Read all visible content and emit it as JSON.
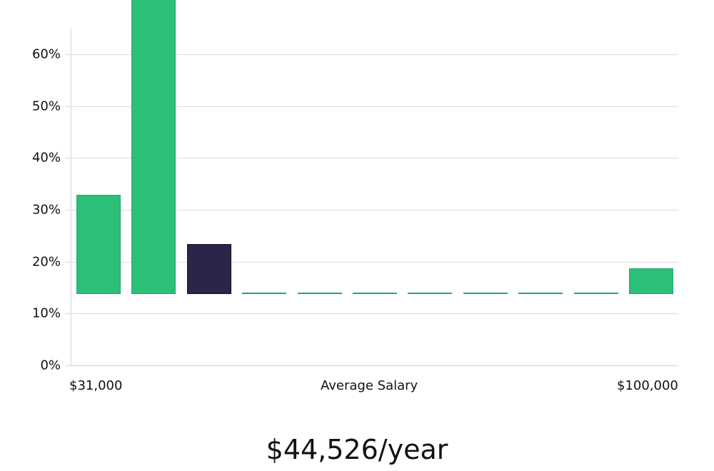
{
  "chart_data": {
    "type": "bar",
    "title": "",
    "xlabel": "Average Salary",
    "ylabel": "",
    "x_range_labels": {
      "min": "$31,000",
      "max": "$100,000"
    },
    "categories": [
      "bin1",
      "bin2",
      "bin3",
      "bin4",
      "bin5",
      "bin6",
      "bin7",
      "bin8",
      "bin9",
      "bin10",
      "bin11"
    ],
    "values": [
      19.1,
      61.9,
      9.6,
      0,
      0,
      0,
      0,
      0,
      0,
      0,
      5.0
    ],
    "highlight_index": 2,
    "yticks": [
      "0%",
      "10%",
      "20%",
      "30%",
      "40%",
      "50%",
      "60%"
    ],
    "ylim": [
      0,
      65
    ],
    "grid": true,
    "colors": {
      "bar": "#2bbf77",
      "highlight": "#29264a",
      "grid": "#dcdcdc"
    }
  },
  "labels": {
    "x_min": "$31,000",
    "x_center": "Average Salary",
    "x_max": "$100,000",
    "average": "$44,526/year"
  }
}
